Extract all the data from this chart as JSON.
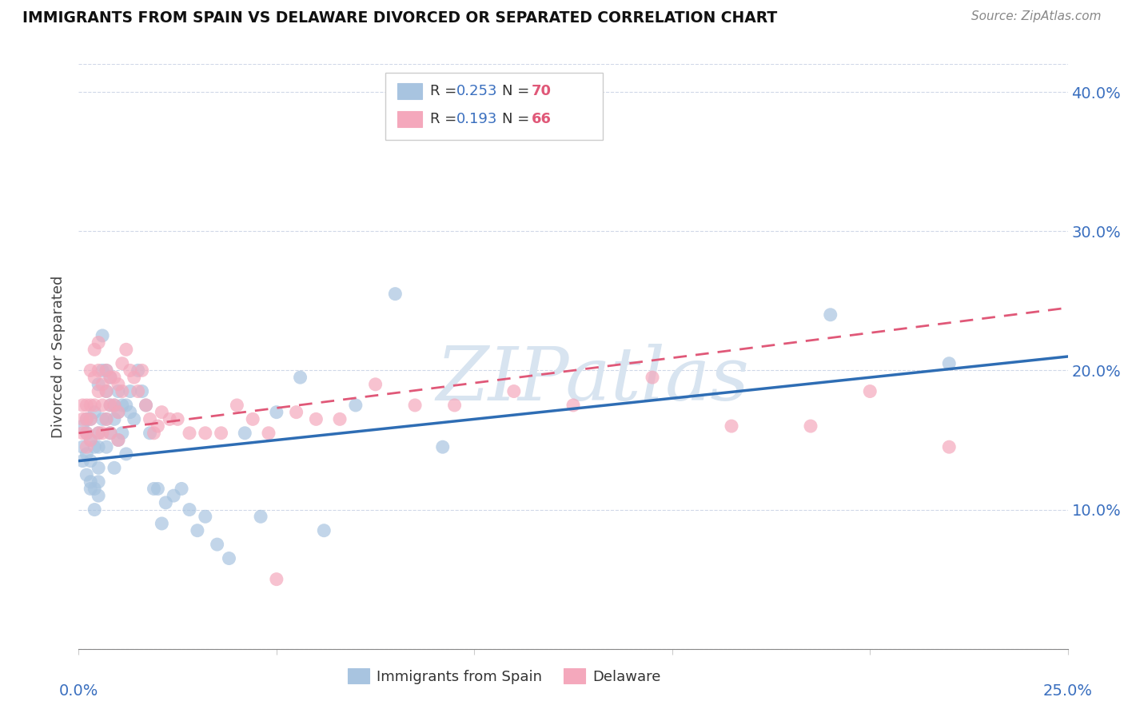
{
  "title": "IMMIGRANTS FROM SPAIN VS DELAWARE DIVORCED OR SEPARATED CORRELATION CHART",
  "source": "Source: ZipAtlas.com",
  "ylabel": "Divorced or Separated",
  "xlim": [
    0.0,
    0.25
  ],
  "ylim": [
    0.0,
    0.42
  ],
  "yticks": [
    0.0,
    0.1,
    0.2,
    0.3,
    0.4
  ],
  "ytick_labels": [
    "",
    "10.0%",
    "20.0%",
    "30.0%",
    "40.0%"
  ],
  "xticks": [
    0.0,
    0.05,
    0.1,
    0.15,
    0.2,
    0.25
  ],
  "blue_R": 0.253,
  "blue_N": 70,
  "pink_R": 0.193,
  "pink_N": 66,
  "blue_color": "#a8c4e0",
  "pink_color": "#f4a8bc",
  "blue_line_color": "#2e6db4",
  "pink_line_color": "#e05878",
  "watermark": "ZIPatlas",
  "watermark_color": "#d8e4f0",
  "legend_label_blue": "Immigrants from Spain",
  "legend_label_pink": "Delaware",
  "blue_line_x0": 0.0,
  "blue_line_y0": 0.135,
  "blue_line_x1": 0.25,
  "blue_line_y1": 0.21,
  "pink_line_x0": 0.0,
  "pink_line_y0": 0.155,
  "pink_line_x1": 0.25,
  "pink_line_y1": 0.245,
  "blue_scatter_x": [
    0.001,
    0.001,
    0.001,
    0.002,
    0.002,
    0.002,
    0.002,
    0.003,
    0.003,
    0.003,
    0.003,
    0.003,
    0.004,
    0.004,
    0.004,
    0.004,
    0.005,
    0.005,
    0.005,
    0.005,
    0.005,
    0.005,
    0.006,
    0.006,
    0.006,
    0.007,
    0.007,
    0.007,
    0.007,
    0.008,
    0.008,
    0.008,
    0.009,
    0.009,
    0.009,
    0.01,
    0.01,
    0.01,
    0.011,
    0.011,
    0.012,
    0.012,
    0.013,
    0.013,
    0.014,
    0.015,
    0.016,
    0.017,
    0.018,
    0.019,
    0.02,
    0.021,
    0.022,
    0.024,
    0.026,
    0.028,
    0.03,
    0.032,
    0.035,
    0.038,
    0.042,
    0.046,
    0.05,
    0.056,
    0.062,
    0.07,
    0.08,
    0.092,
    0.19,
    0.22
  ],
  "blue_scatter_y": [
    0.145,
    0.16,
    0.135,
    0.155,
    0.165,
    0.14,
    0.125,
    0.165,
    0.15,
    0.135,
    0.12,
    0.115,
    0.17,
    0.145,
    0.115,
    0.1,
    0.19,
    0.155,
    0.145,
    0.13,
    0.12,
    0.11,
    0.225,
    0.2,
    0.165,
    0.2,
    0.185,
    0.165,
    0.145,
    0.195,
    0.175,
    0.155,
    0.175,
    0.165,
    0.13,
    0.185,
    0.17,
    0.15,
    0.175,
    0.155,
    0.175,
    0.14,
    0.185,
    0.17,
    0.165,
    0.2,
    0.185,
    0.175,
    0.155,
    0.115,
    0.115,
    0.09,
    0.105,
    0.11,
    0.115,
    0.1,
    0.085,
    0.095,
    0.075,
    0.065,
    0.155,
    0.095,
    0.17,
    0.195,
    0.085,
    0.175,
    0.255,
    0.145,
    0.24,
    0.205
  ],
  "pink_scatter_x": [
    0.001,
    0.001,
    0.001,
    0.002,
    0.002,
    0.002,
    0.002,
    0.003,
    0.003,
    0.003,
    0.003,
    0.004,
    0.004,
    0.004,
    0.005,
    0.005,
    0.005,
    0.005,
    0.006,
    0.006,
    0.006,
    0.007,
    0.007,
    0.007,
    0.008,
    0.008,
    0.008,
    0.009,
    0.009,
    0.01,
    0.01,
    0.01,
    0.011,
    0.011,
    0.012,
    0.013,
    0.014,
    0.015,
    0.016,
    0.017,
    0.018,
    0.019,
    0.02,
    0.021,
    0.023,
    0.025,
    0.028,
    0.032,
    0.036,
    0.04,
    0.044,
    0.048,
    0.055,
    0.06,
    0.066,
    0.075,
    0.085,
    0.095,
    0.11,
    0.125,
    0.145,
    0.165,
    0.185,
    0.2,
    0.22,
    0.05
  ],
  "pink_scatter_y": [
    0.175,
    0.165,
    0.155,
    0.175,
    0.165,
    0.155,
    0.145,
    0.2,
    0.175,
    0.165,
    0.15,
    0.215,
    0.195,
    0.175,
    0.22,
    0.2,
    0.185,
    0.155,
    0.19,
    0.175,
    0.155,
    0.2,
    0.185,
    0.165,
    0.195,
    0.175,
    0.155,
    0.195,
    0.175,
    0.19,
    0.17,
    0.15,
    0.205,
    0.185,
    0.215,
    0.2,
    0.195,
    0.185,
    0.2,
    0.175,
    0.165,
    0.155,
    0.16,
    0.17,
    0.165,
    0.165,
    0.155,
    0.155,
    0.155,
    0.175,
    0.165,
    0.155,
    0.17,
    0.165,
    0.165,
    0.19,
    0.175,
    0.175,
    0.185,
    0.175,
    0.195,
    0.16,
    0.16,
    0.185,
    0.145,
    0.05
  ]
}
